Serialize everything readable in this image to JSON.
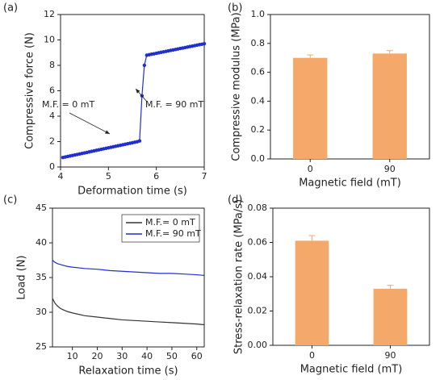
{
  "chart_data": [
    {
      "type": "line",
      "label": "(a)",
      "xlabel": "Deformation time (s)",
      "ylabel": "Compressive force (N)",
      "color": "#1f2fd0",
      "markers": true,
      "x": [
        4.05,
        4.1,
        4.15,
        4.2,
        4.25,
        4.3,
        4.35,
        4.4,
        4.45,
        4.5,
        4.55,
        4.6,
        4.65,
        4.7,
        4.75,
        4.8,
        4.85,
        4.9,
        4.95,
        5.0,
        5.05,
        5.1,
        5.15,
        5.2,
        5.25,
        5.3,
        5.35,
        5.4,
        5.45,
        5.5,
        5.55,
        5.6,
        5.65,
        5.7,
        5.75,
        5.8,
        5.85,
        5.9,
        5.95,
        6.0,
        6.05,
        6.1,
        6.15,
        6.2,
        6.25,
        6.3,
        6.35,
        6.4,
        6.45,
        6.5,
        6.55,
        6.6,
        6.65,
        6.7,
        6.75,
        6.8,
        6.85,
        6.9,
        6.95,
        7.0
      ],
      "values": [
        0.75,
        0.79,
        0.83,
        0.87,
        0.91,
        0.95,
        0.99,
        1.03,
        1.07,
        1.11,
        1.15,
        1.19,
        1.23,
        1.27,
        1.31,
        1.35,
        1.39,
        1.43,
        1.47,
        1.51,
        1.55,
        1.59,
        1.63,
        1.67,
        1.71,
        1.75,
        1.79,
        1.83,
        1.87,
        1.91,
        1.95,
        1.99,
        2.05,
        5.6,
        8.0,
        8.8,
        8.84,
        8.88,
        8.91,
        8.95,
        8.99,
        9.03,
        9.06,
        9.1,
        9.14,
        9.18,
        9.21,
        9.25,
        9.29,
        9.33,
        9.36,
        9.4,
        9.44,
        9.48,
        9.51,
        9.55,
        9.59,
        9.63,
        9.66,
        9.7
      ],
      "xlim": [
        4,
        7
      ],
      "xticks": [
        4,
        5,
        6,
        7
      ],
      "ylim": [
        0,
        12
      ],
      "yticks": [
        0,
        2,
        4,
        6,
        8,
        10,
        12
      ],
      "annotations": [
        "M.F. = 0 mT",
        "M.F. = 90 mT"
      ]
    },
    {
      "type": "bar",
      "label": "(b)",
      "xlabel": "Magnetic field (mT)",
      "ylabel": "Compressive modulus (MPa)",
      "color": "#f4a96a",
      "categories": [
        "0",
        "90"
      ],
      "values": [
        0.7,
        0.73
      ],
      "errors": [
        0.02,
        0.02
      ],
      "ylim": [
        0,
        1.0
      ],
      "yticks": [
        {
          "value": 0,
          "label": "0.0"
        },
        0.2,
        0.4,
        0.6,
        0.8,
        {
          "value": 1,
          "label": "1.0"
        }
      ]
    },
    {
      "type": "line",
      "label": "(c)",
      "xlabel": "Relaxation time (s)",
      "ylabel": "Load (N)",
      "legend": "upper right",
      "x": [
        2,
        3,
        4,
        5,
        6,
        8,
        10,
        15,
        20,
        25,
        30,
        35,
        40,
        45,
        50,
        55,
        60,
        63
      ],
      "series": [
        {
          "name": "M.F.= 0 mT",
          "color": "#333333",
          "values": [
            32.0,
            31.3,
            30.9,
            30.6,
            30.4,
            30.1,
            29.9,
            29.5,
            29.3,
            29.1,
            28.9,
            28.8,
            28.7,
            28.6,
            28.5,
            28.4,
            28.3,
            28.2
          ]
        },
        {
          "name": "M.F.= 90 mT",
          "color": "#1f2fd0",
          "values": [
            37.5,
            37.2,
            37.0,
            36.9,
            36.8,
            36.6,
            36.5,
            36.3,
            36.2,
            36.0,
            35.9,
            35.8,
            35.7,
            35.6,
            35.6,
            35.5,
            35.4,
            35.3
          ]
        }
      ],
      "xlim": [
        2,
        63
      ],
      "xticks": [
        10,
        20,
        30,
        40,
        50,
        60
      ],
      "ylim": [
        25,
        45
      ],
      "yticks": [
        25,
        30,
        35,
        40,
        45
      ]
    },
    {
      "type": "bar",
      "label": "(d)",
      "xlabel": "Magnetic field (mT)",
      "ylabel": "Stress-relaxation rate (MPa/s)",
      "color": "#f4a96a",
      "categories": [
        "0",
        "90"
      ],
      "values": [
        0.061,
        0.033
      ],
      "errors": [
        0.003,
        0.002
      ],
      "ylim": [
        0,
        0.08
      ],
      "yticks": [
        {
          "value": 0,
          "label": "0.00"
        },
        0.02,
        0.04,
        0.06,
        0.08
      ]
    }
  ]
}
